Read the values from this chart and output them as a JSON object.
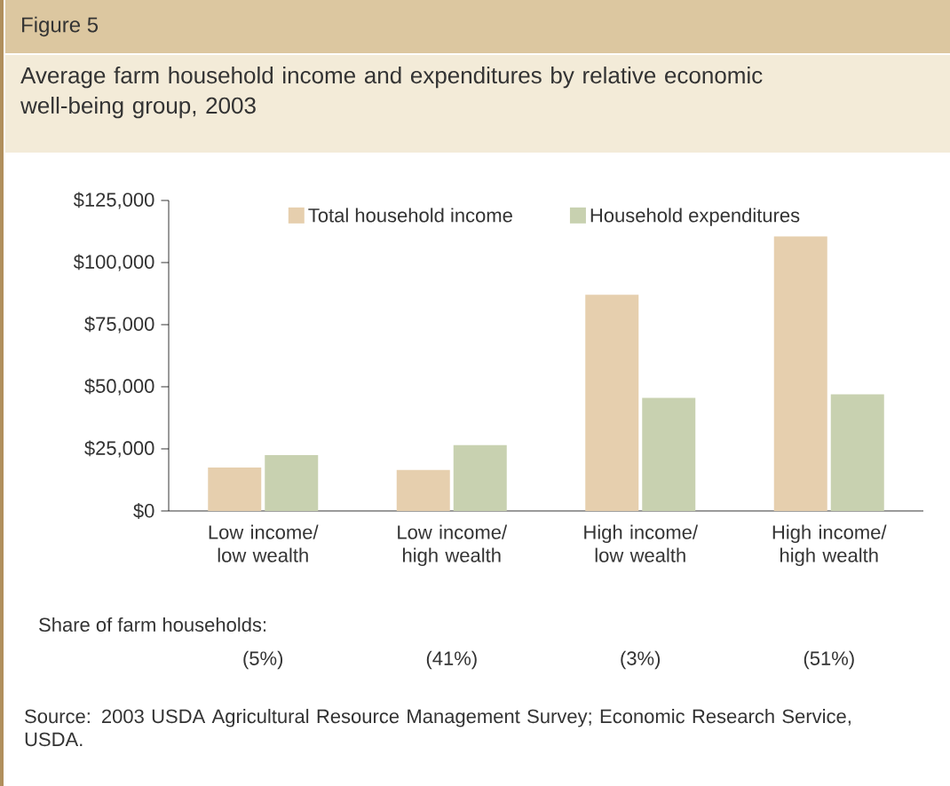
{
  "chart_data": {
    "type": "bar",
    "title": "Average farm household income and expenditures by relative economic well-being group, 2003",
    "categories": [
      "Low income/ low wealth",
      "Low income/ high wealth",
      "High income/ low wealth",
      "High income/ high wealth"
    ],
    "series": [
      {
        "name": "Total household income",
        "color": "#e6cfae",
        "values": [
          17500,
          16500,
          87000,
          110500
        ]
      },
      {
        "name": "Household expenditures",
        "color": "#c8d1b0",
        "values": [
          22500,
          26500,
          45500,
          47000
        ]
      }
    ],
    "ylim": [
      0,
      125000
    ],
    "yticks": [
      {
        "value": 0,
        "label": "$0"
      },
      {
        "value": 25000,
        "label": "$25,000"
      },
      {
        "value": 50000,
        "label": "$50,000"
      },
      {
        "value": 75000,
        "label": "$75,000"
      },
      {
        "value": 100000,
        "label": "$100,000"
      },
      {
        "value": 125000,
        "label": "$125,000"
      }
    ],
    "legend": "top",
    "annotations": [
      "Figure 5",
      "Share of farm households:",
      "(5%)",
      "(41%)",
      "(3%)",
      "(51%)",
      "Source: 2003 USDA Agricultural Resource Management Survey; Economic Research Service, USDA."
    ]
  }
}
